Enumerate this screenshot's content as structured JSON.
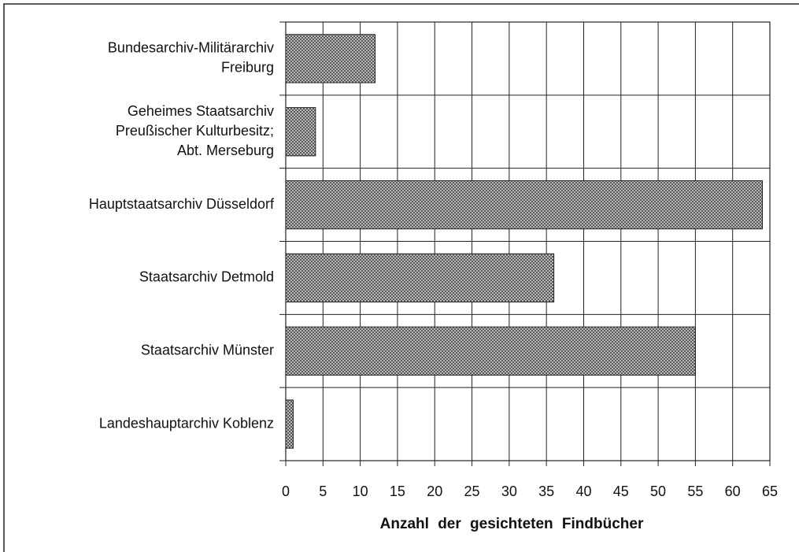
{
  "chart_data": {
    "type": "barh",
    "categories": [
      [
        "Bundesarchiv-Militärarchiv",
        "Freiburg"
      ],
      [
        "Geheimes Staatsarchiv",
        "Preußischer Kulturbesitz;",
        "Abt. Merseburg"
      ],
      [
        "Hauptstaatsarchiv Düsseldorf"
      ],
      [
        "Staatsarchiv Detmold"
      ],
      [
        "Staatsarchiv Münster"
      ],
      [
        "Landeshauptarchiv Koblenz"
      ]
    ],
    "values": [
      12,
      4,
      64,
      36,
      55,
      1
    ],
    "color": "#555555",
    "xlabel": "Anzahl der gesichteten Findbücher",
    "xlim": [
      0,
      65
    ],
    "xticks": [
      0,
      5,
      10,
      15,
      20,
      25,
      30,
      35,
      40,
      45,
      50,
      55,
      60,
      65
    ],
    "grid": true
  }
}
